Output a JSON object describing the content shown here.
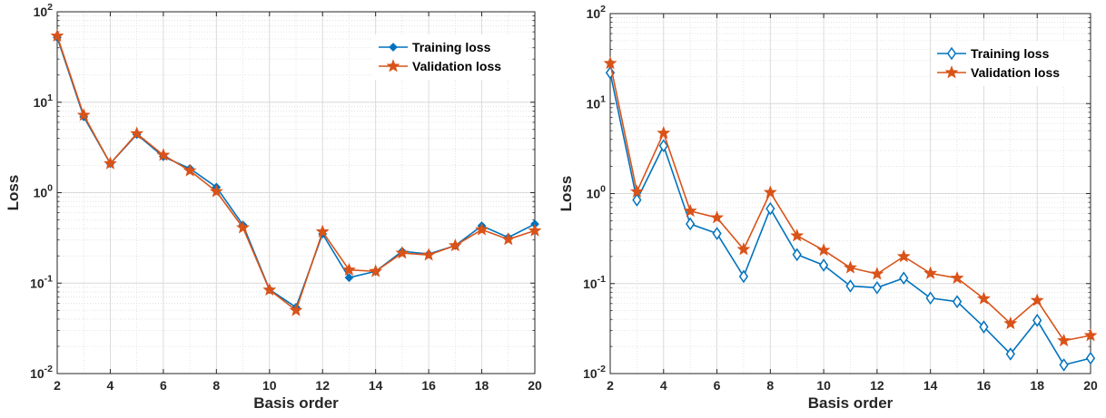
{
  "chart_data": [
    {
      "type": "line",
      "title": "",
      "xlabel": "Basis order",
      "ylabel": "Loss",
      "yscale": "log",
      "xlim": [
        2,
        20
      ],
      "ylim": [
        0.01,
        100
      ],
      "grid": true,
      "legend_position": "top-right",
      "x_ticks": [
        "2",
        "4",
        "6",
        "8",
        "10",
        "12",
        "14",
        "16",
        "18",
        "20"
      ],
      "y_ticks": [
        {
          "base": "10",
          "exp": "-2"
        },
        {
          "base": "10",
          "exp": "-1"
        },
        {
          "base": "10",
          "exp": "0"
        },
        {
          "base": "10",
          "exp": "1"
        },
        {
          "base": "10",
          "exp": "2"
        }
      ],
      "x": [
        2,
        3,
        4,
        5,
        6,
        7,
        8,
        9,
        10,
        11,
        12,
        13,
        14,
        15,
        16,
        17,
        18,
        19,
        20
      ],
      "series": [
        {
          "name": "Training loss",
          "color": "#0072BD",
          "marker": "diamond-filled",
          "values": [
            52,
            6.9,
            2.1,
            4.4,
            2.5,
            1.85,
            1.15,
            0.44,
            0.085,
            0.054,
            0.35,
            0.115,
            0.135,
            0.225,
            0.21,
            0.26,
            0.43,
            0.32,
            0.45
          ]
        },
        {
          "name": "Validation loss",
          "color": "#D95319",
          "marker": "star",
          "values": [
            54,
            7.2,
            2.1,
            4.5,
            2.6,
            1.75,
            1.03,
            0.41,
            0.084,
            0.05,
            0.37,
            0.14,
            0.135,
            0.215,
            0.205,
            0.26,
            0.39,
            0.305,
            0.38
          ]
        }
      ]
    },
    {
      "type": "line",
      "title": "",
      "xlabel": "Basis order",
      "ylabel": "Loss",
      "yscale": "log",
      "xlim": [
        2,
        20
      ],
      "ylim": [
        0.01,
        100
      ],
      "grid": true,
      "legend_position": "top-right",
      "x_ticks": [
        "2",
        "4",
        "6",
        "8",
        "10",
        "12",
        "14",
        "16",
        "18",
        "20"
      ],
      "y_ticks": [
        {
          "base": "10",
          "exp": "-2"
        },
        {
          "base": "10",
          "exp": "-1"
        },
        {
          "base": "10",
          "exp": "0"
        },
        {
          "base": "10",
          "exp": "1"
        },
        {
          "base": "10",
          "exp": "2"
        }
      ],
      "x": [
        2,
        3,
        4,
        5,
        6,
        7,
        8,
        9,
        10,
        11,
        12,
        13,
        14,
        15,
        16,
        17,
        18,
        19,
        20
      ],
      "series": [
        {
          "name": "Training loss",
          "color": "#0072BD",
          "marker": "diamond-open",
          "values": [
            22,
            0.85,
            3.4,
            0.46,
            0.36,
            0.12,
            0.68,
            0.21,
            0.16,
            0.094,
            0.09,
            0.115,
            0.069,
            0.063,
            0.033,
            0.0165,
            0.039,
            0.0125,
            0.0148
          ]
        },
        {
          "name": "Validation loss",
          "color": "#D95319",
          "marker": "star",
          "values": [
            28,
            1.05,
            4.7,
            0.64,
            0.54,
            0.24,
            1.03,
            0.34,
            0.235,
            0.15,
            0.128,
            0.2,
            0.13,
            0.115,
            0.068,
            0.036,
            0.065,
            0.0232,
            0.0265
          ]
        }
      ]
    }
  ]
}
